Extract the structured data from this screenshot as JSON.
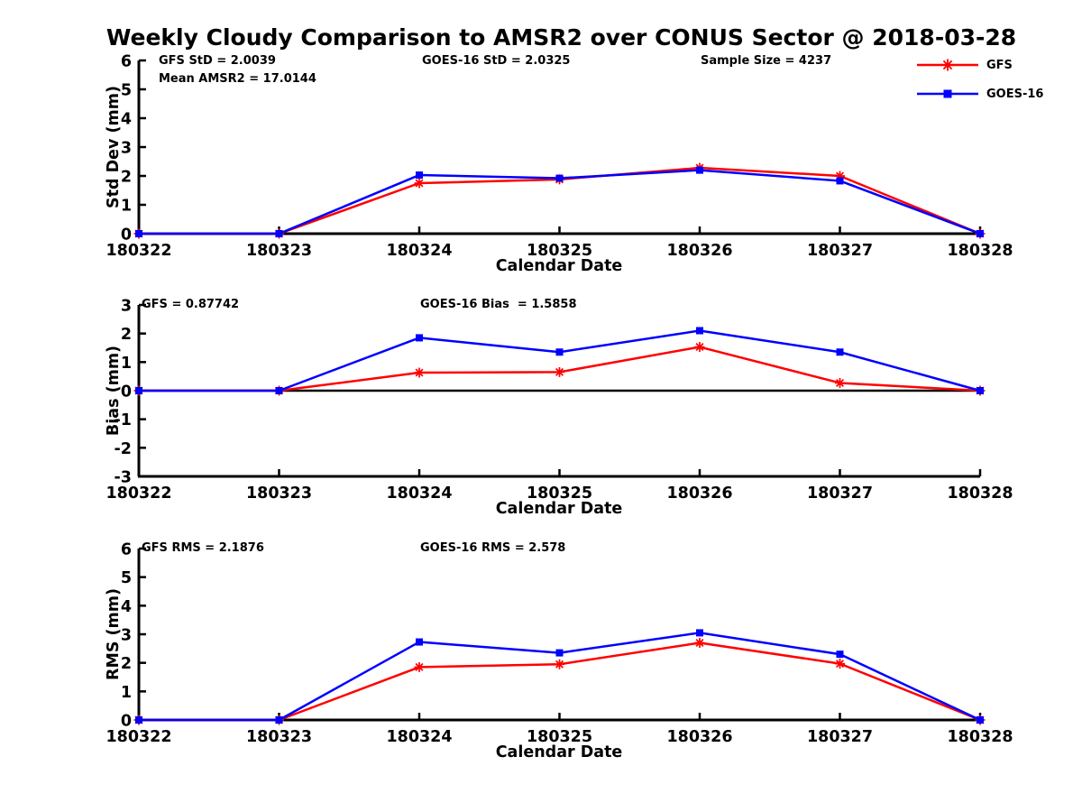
{
  "title": "Weekly Cloudy Comparison to AMSR2 over CONUS Sector @ 2018-03-28",
  "colors": {
    "gfs": "#ff0000",
    "goes16": "#0000ff",
    "axis": "#000000"
  },
  "legend": {
    "entries": [
      {
        "label": "GFS",
        "color": "#ff0000",
        "marker": "star"
      },
      {
        "label": "GOES-16",
        "color": "#0000ff",
        "marker": "square"
      }
    ]
  },
  "chart_data": [
    {
      "type": "line",
      "name": "std-dev",
      "xlabel": "Calendar Date",
      "ylabel": "Std Dev (mm)",
      "ylim": [
        0,
        6
      ],
      "ytick_step": 1,
      "grid": false,
      "zero_line": false,
      "legend_position": "top-right",
      "categories": [
        "180322",
        "180323",
        "180324",
        "180325",
        "180326",
        "180327",
        "180328"
      ],
      "series": [
        {
          "name": "GFS",
          "color": "#ff0000",
          "marker": "star",
          "values": [
            0,
            0,
            1.75,
            1.88,
            2.28,
            2.0,
            0
          ]
        },
        {
          "name": "GOES-16",
          "color": "#0000ff",
          "marker": "square",
          "values": [
            0,
            0,
            2.03,
            1.92,
            2.2,
            1.83,
            0
          ]
        }
      ],
      "annotations": [
        {
          "text": "GFS StD = 2.0039"
        },
        {
          "text": "Mean AMSR2 = 17.0144"
        },
        {
          "text": "GOES-16 StD = 2.0325"
        },
        {
          "text": "Sample Size = 4237"
        }
      ]
    },
    {
      "type": "line",
      "name": "bias",
      "xlabel": "Calendar Date",
      "ylabel": "Bias (mm)",
      "ylim": [
        -3,
        3
      ],
      "ytick_step": 1,
      "grid": false,
      "zero_line": true,
      "categories": [
        "180322",
        "180323",
        "180324",
        "180325",
        "180326",
        "180327",
        "180328"
      ],
      "series": [
        {
          "name": "GFS",
          "color": "#ff0000",
          "marker": "star",
          "values": [
            0,
            0,
            0.63,
            0.65,
            1.53,
            0.27,
            0
          ]
        },
        {
          "name": "GOES-16",
          "color": "#0000ff",
          "marker": "square",
          "values": [
            0,
            0,
            1.85,
            1.35,
            2.1,
            1.35,
            0
          ]
        }
      ],
      "annotations": [
        {
          "text": "GFS = 0.87742"
        },
        {
          "text": "GOES-16 Bias  = 1.5858"
        }
      ]
    },
    {
      "type": "line",
      "name": "rms",
      "xlabel": "Calendar Date",
      "ylabel": "RMS (mm)",
      "ylim": [
        0,
        6
      ],
      "ytick_step": 1,
      "grid": false,
      "zero_line": false,
      "categories": [
        "180322",
        "180323",
        "180324",
        "180325",
        "180326",
        "180327",
        "180328"
      ],
      "series": [
        {
          "name": "GFS",
          "color": "#ff0000",
          "marker": "star",
          "values": [
            0,
            0,
            1.85,
            1.95,
            2.7,
            1.97,
            0
          ]
        },
        {
          "name": "GOES-16",
          "color": "#0000ff",
          "marker": "square",
          "values": [
            0,
            0,
            2.73,
            2.35,
            3.05,
            2.3,
            0
          ]
        }
      ],
      "annotations": [
        {
          "text": "GFS RMS = 2.1876"
        },
        {
          "text": "GOES-16 RMS = 2.578"
        }
      ]
    }
  ]
}
